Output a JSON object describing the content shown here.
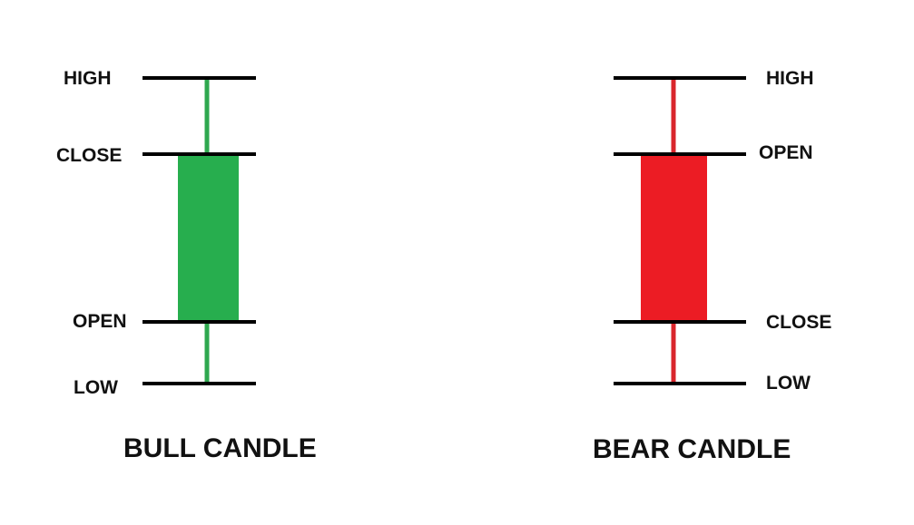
{
  "bull_candle": {
    "title": "BULL CANDLE",
    "labels": {
      "high": "HIGH",
      "close": "CLOSE",
      "open": "OPEN",
      "low": "LOW"
    },
    "body_color": "#27ae4e",
    "wick_color": "#2fa84f"
  },
  "bear_candle": {
    "title": "BEAR CANDLE",
    "labels": {
      "high": "HIGH",
      "open": "OPEN",
      "close": "CLOSE",
      "low": "LOW"
    },
    "body_color": "#ec1c24",
    "wick_color": "#d9262c"
  },
  "line_color": "#000000"
}
